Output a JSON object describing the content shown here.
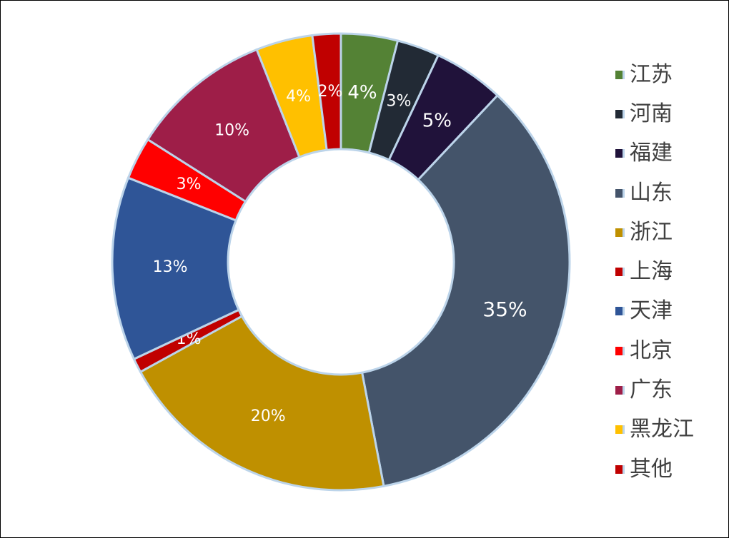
{
  "chart_data": {
    "type": "pie",
    "variant": "doughnut",
    "title": "",
    "legend_position": "right",
    "slices": [
      {
        "name": "江苏",
        "value": 4,
        "label": "4%",
        "color": "#548235"
      },
      {
        "name": "河南",
        "value": 3,
        "label": "3%",
        "color": "#222a35"
      },
      {
        "name": "福建",
        "value": 5,
        "label": "5%",
        "color": "#20123a"
      },
      {
        "name": "山东",
        "value": 35,
        "label": "35%",
        "color": "#44546a"
      },
      {
        "name": "浙江",
        "value": 20,
        "label": "20%",
        "color": "#bf9000"
      },
      {
        "name": "上海",
        "value": 1,
        "label": "1%",
        "color": "#c00000"
      },
      {
        "name": "天津",
        "value": 13,
        "label": "13%",
        "color": "#2f5597"
      },
      {
        "name": "北京",
        "value": 3,
        "label": "3%",
        "color": "#ff0000"
      },
      {
        "name": "广东",
        "value": 10,
        "label": "10%",
        "color": "#9e1e48"
      },
      {
        "name": "黑龙江",
        "value": 4,
        "label": "4%",
        "color": "#ffc000"
      },
      {
        "name": "其他",
        "value": 2,
        "label": "2%",
        "color": "#c00000"
      }
    ]
  }
}
